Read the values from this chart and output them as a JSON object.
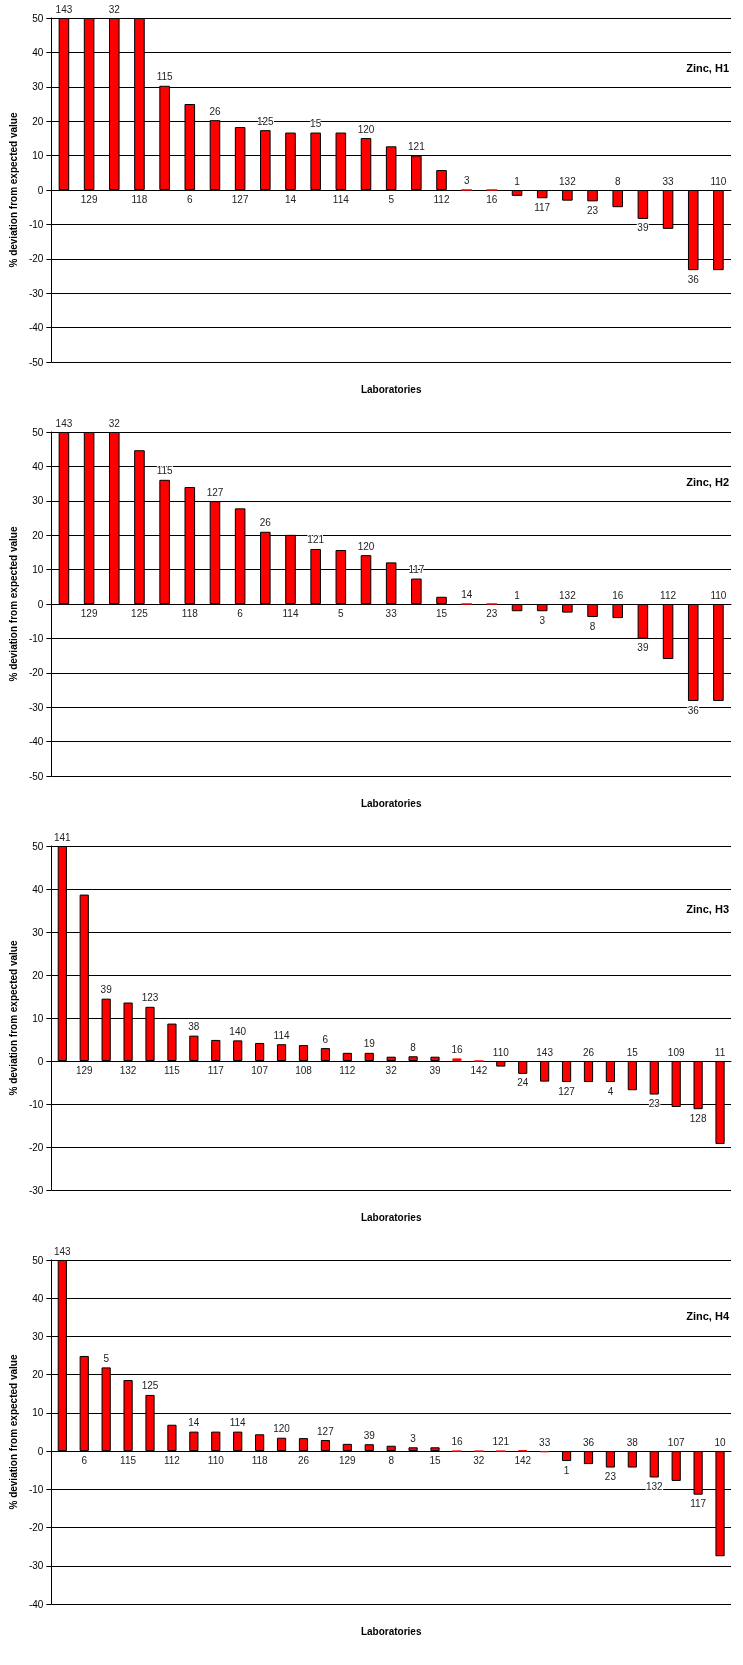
{
  "chart_data": [
    {
      "type": "bar",
      "title": "Zinc, H1",
      "xlabel": "Laboratories",
      "ylabel": "% deviation from expected value",
      "color": "#ff0000",
      "grid": "y",
      "ylim": [
        -50,
        50
      ],
      "yticks": [
        -50,
        -40,
        -30,
        -20,
        -10,
        0,
        10,
        20,
        30,
        40,
        50
      ],
      "categories": [
        "143",
        "129",
        "32",
        "118",
        "115",
        "6",
        "26",
        "127",
        "125",
        "14",
        "15",
        "114",
        "120",
        "5",
        "121",
        "112",
        "3",
        "16",
        "1",
        "117",
        "132",
        "23",
        "8",
        "39",
        "33",
        "36",
        "110"
      ],
      "values": [
        50,
        50,
        50,
        50,
        30.3,
        25.0,
        20.3,
        18.3,
        17.4,
        16.7,
        16.7,
        16.7,
        15.1,
        12.7,
        10.0,
        5.8,
        0,
        0,
        -1.7,
        -2.4,
        -3.1,
        -3.3,
        -5.0,
        -8.4,
        -11.3,
        -23.3,
        -23.3
      ]
    },
    {
      "type": "bar",
      "title": "Zinc, H2",
      "xlabel": "Laboratories",
      "ylabel": "% deviation from expected value",
      "color": "#ff0000",
      "grid": "y",
      "ylim": [
        -50,
        50
      ],
      "yticks": [
        -50,
        -40,
        -30,
        -20,
        -10,
        0,
        10,
        20,
        30,
        40,
        50
      ],
      "categories": [
        "143",
        "129",
        "32",
        "125",
        "115",
        "118",
        "127",
        "6",
        "26",
        "114",
        "121",
        "5",
        "120",
        "33",
        "117",
        "15",
        "14",
        "23",
        "1",
        "3",
        "132",
        "8",
        "16",
        "39",
        "112",
        "36",
        "110"
      ],
      "values": [
        50,
        50,
        50,
        44.7,
        36.1,
        34.0,
        29.9,
        27.8,
        21.0,
        20.1,
        16.0,
        15.7,
        14.2,
        12.1,
        7.4,
        2.1,
        0,
        0,
        -2.1,
        -2.1,
        -2.5,
        -3.8,
        -4.1,
        -10.1,
        -16.0,
        -28.2,
        -28.2
      ]
    },
    {
      "type": "bar",
      "title": "Zinc, H3",
      "xlabel": "Laboratories",
      "ylabel": "% deviation from expected value",
      "color": "#ff0000",
      "grid": "y",
      "ylim": [
        -30,
        50
      ],
      "yticks": [
        -30,
        -20,
        -10,
        0,
        10,
        20,
        30,
        40,
        50
      ],
      "categories": [
        "141",
        "129",
        "39",
        "132",
        "123",
        "115",
        "38",
        "117",
        "140",
        "107",
        "114",
        "108",
        "6",
        "112",
        "19",
        "32",
        "8",
        "39",
        "16",
        "142",
        "110",
        "24",
        "143",
        "127",
        "26",
        "4",
        "15",
        "23",
        "109",
        "128",
        "11"
      ],
      "values": [
        50,
        38.7,
        14.5,
        13.6,
        12.6,
        8.7,
        5.9,
        4.9,
        4.8,
        4.2,
        3.9,
        3.7,
        3.0,
        1.9,
        1.9,
        1.0,
        1.1,
        1.0,
        0.6,
        0,
        -1.3,
        -3.0,
        -4.8,
        -4.9,
        -4.9,
        -4.9,
        -6.8,
        -7.8,
        -10.7,
        -11.2,
        -19.3
      ]
    },
    {
      "type": "bar",
      "title": "Zinc, H4",
      "xlabel": "Laboratories",
      "ylabel": "% deviation from expected value",
      "color": "#ff0000",
      "grid": "y",
      "ylim": [
        -40,
        50
      ],
      "yticks": [
        -40,
        -30,
        -20,
        -10,
        0,
        10,
        20,
        30,
        40,
        50
      ],
      "categories": [
        "143",
        "6",
        "5",
        "115",
        "125",
        "112",
        "14",
        "110",
        "114",
        "118",
        "120",
        "26",
        "127",
        "129",
        "39",
        "8",
        "3",
        "15",
        "16",
        "32",
        "121",
        "142",
        "33",
        "1",
        "36",
        "23",
        "38",
        "132",
        "107",
        "117",
        "10"
      ],
      "values": [
        50,
        24.9,
        21.9,
        18.6,
        14.7,
        6.9,
        5.1,
        5.1,
        5.1,
        4.4,
        3.5,
        3.4,
        2.9,
        1.9,
        1.8,
        1.4,
        1.0,
        1.0,
        0,
        0,
        0,
        0.2,
        -0.3,
        -2.6,
        -3.4,
        -4.3,
        -4.3,
        -6.9,
        -7.8,
        -11.4,
        -27.5
      ]
    }
  ]
}
